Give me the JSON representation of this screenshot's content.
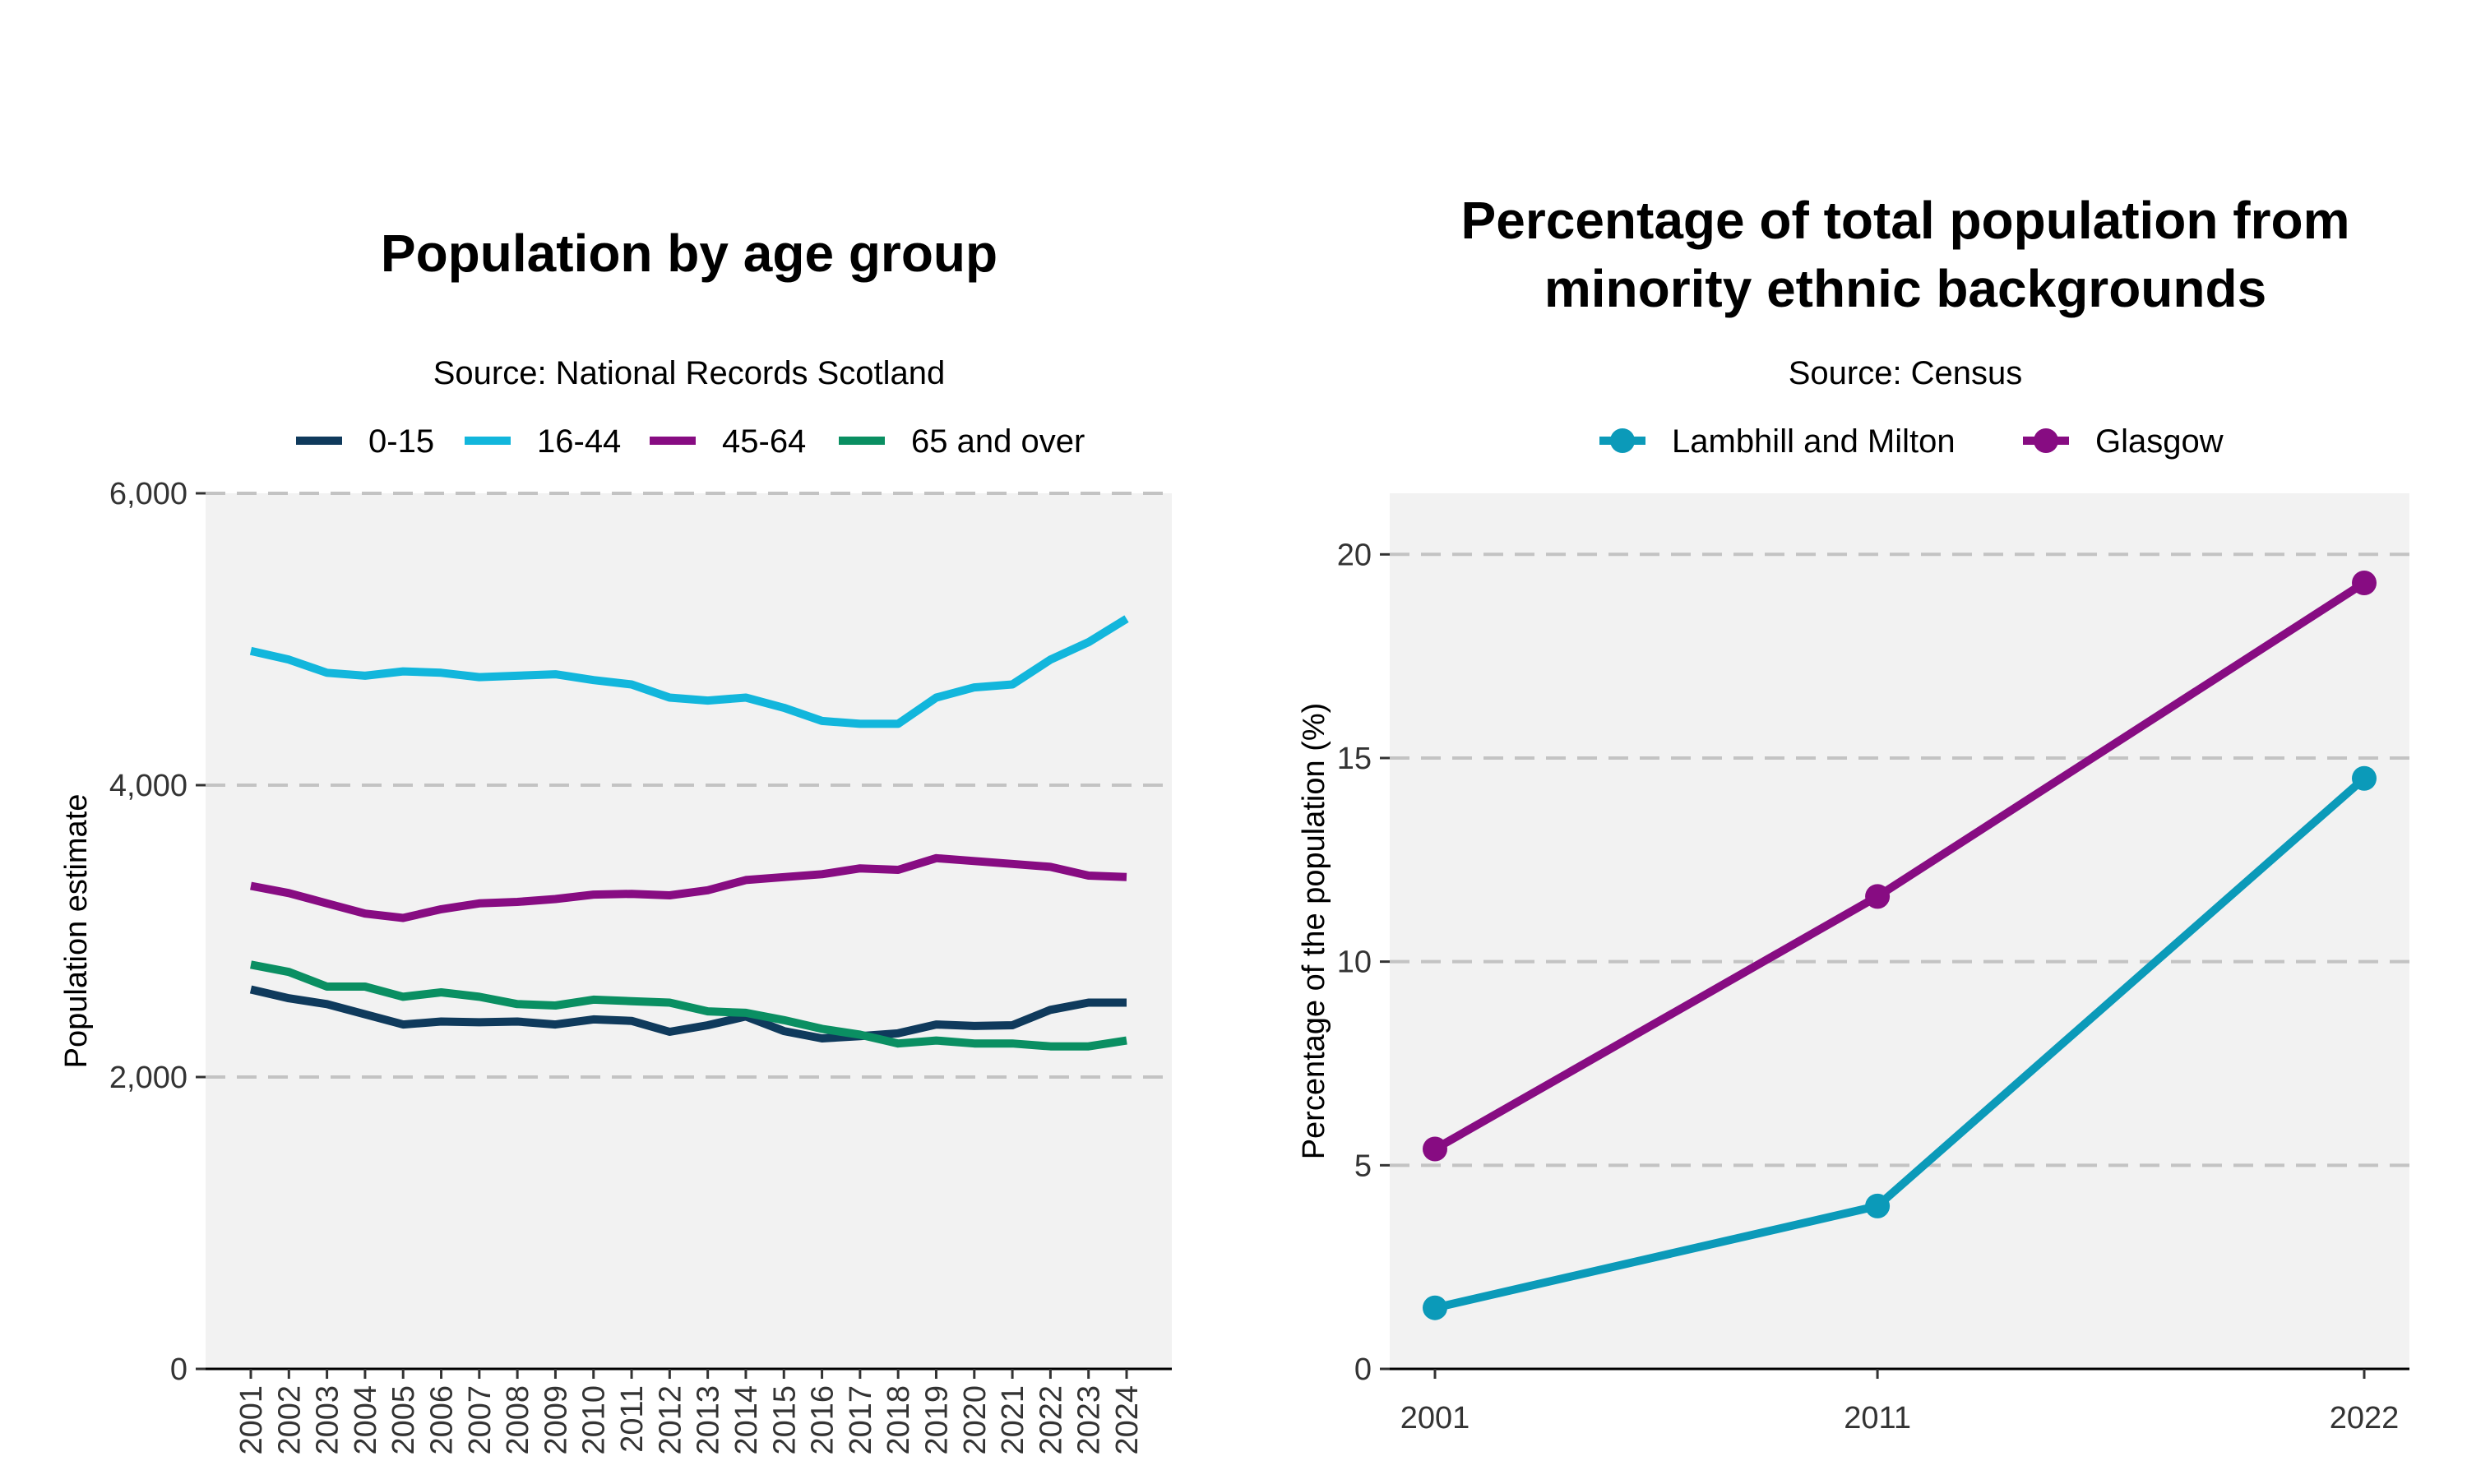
{
  "charts": [
    {
      "type": "line",
      "title": [
        "Population by age group"
      ],
      "subtitle": "Source: National Records Scotland",
      "ylabel": "Population estimate",
      "xlabel": "",
      "ylim": [
        0,
        6000
      ],
      "yticks": [
        0,
        2000,
        4000,
        6000
      ],
      "ytick_labels": [
        "0",
        "2,000",
        "4,000",
        "6,000"
      ],
      "x": [
        "2001",
        "2002",
        "2003",
        "2004",
        "2005",
        "2006",
        "2007",
        "2008",
        "2009",
        "2010",
        "2011",
        "2012",
        "2013",
        "2014",
        "2015",
        "2016",
        "2017",
        "2018",
        "2019",
        "2020",
        "2021",
        "2022",
        "2023",
        "2024"
      ],
      "grid": "horizontal-dashed",
      "legend_position": "top",
      "series": [
        {
          "name": "0-15",
          "color": "#0f3a5c",
          "values": [
            2600,
            2540,
            2500,
            2430,
            2360,
            2380,
            2375,
            2380,
            2360,
            2395,
            2385,
            2310,
            2355,
            2415,
            2315,
            2265,
            2280,
            2300,
            2360,
            2350,
            2355,
            2460,
            2510,
            2510
          ]
        },
        {
          "name": "16-44",
          "color": "#12b6dc",
          "values": [
            4920,
            4860,
            4770,
            4750,
            4780,
            4770,
            4740,
            4750,
            4760,
            4720,
            4690,
            4600,
            4580,
            4600,
            4530,
            4440,
            4420,
            4420,
            4600,
            4670,
            4690,
            4860,
            4980,
            5140
          ]
        },
        {
          "name": "45-64",
          "color": "#870c82",
          "values": [
            3310,
            3260,
            3190,
            3120,
            3090,
            3150,
            3190,
            3200,
            3220,
            3250,
            3255,
            3245,
            3280,
            3350,
            3370,
            3390,
            3430,
            3420,
            3500,
            3480,
            3460,
            3440,
            3380,
            3370
          ]
        },
        {
          "name": "65 and over",
          "color": "#0a8f62",
          "values": [
            2770,
            2720,
            2620,
            2620,
            2550,
            2580,
            2550,
            2500,
            2490,
            2530,
            2520,
            2510,
            2450,
            2440,
            2390,
            2330,
            2290,
            2230,
            2250,
            2230,
            2230,
            2210,
            2210,
            2250
          ]
        }
      ]
    },
    {
      "type": "line",
      "title": [
        "Percentage of total population from",
        "minority ethnic backgrounds"
      ],
      "subtitle": "Source: Census",
      "ylabel": "Percentage of the population (%)",
      "xlabel": "",
      "ylim": [
        0,
        21.5
      ],
      "yticks": [
        0,
        5,
        10,
        15,
        20
      ],
      "ytick_labels": [
        "0",
        "5",
        "10",
        "15",
        "20"
      ],
      "x": [
        2001,
        2011,
        2022
      ],
      "xtick_labels": [
        "2001",
        "2011",
        "2022"
      ],
      "grid": "horizontal-dashed",
      "legend_position": "top",
      "markers": true,
      "series": [
        {
          "name": "Lambhill and Milton",
          "color": "#0b9ab9",
          "values": [
            1.5,
            4.0,
            14.5
          ]
        },
        {
          "name": "Glasgow",
          "color": "#870c82",
          "values": [
            5.4,
            11.6,
            19.3
          ]
        }
      ]
    }
  ]
}
